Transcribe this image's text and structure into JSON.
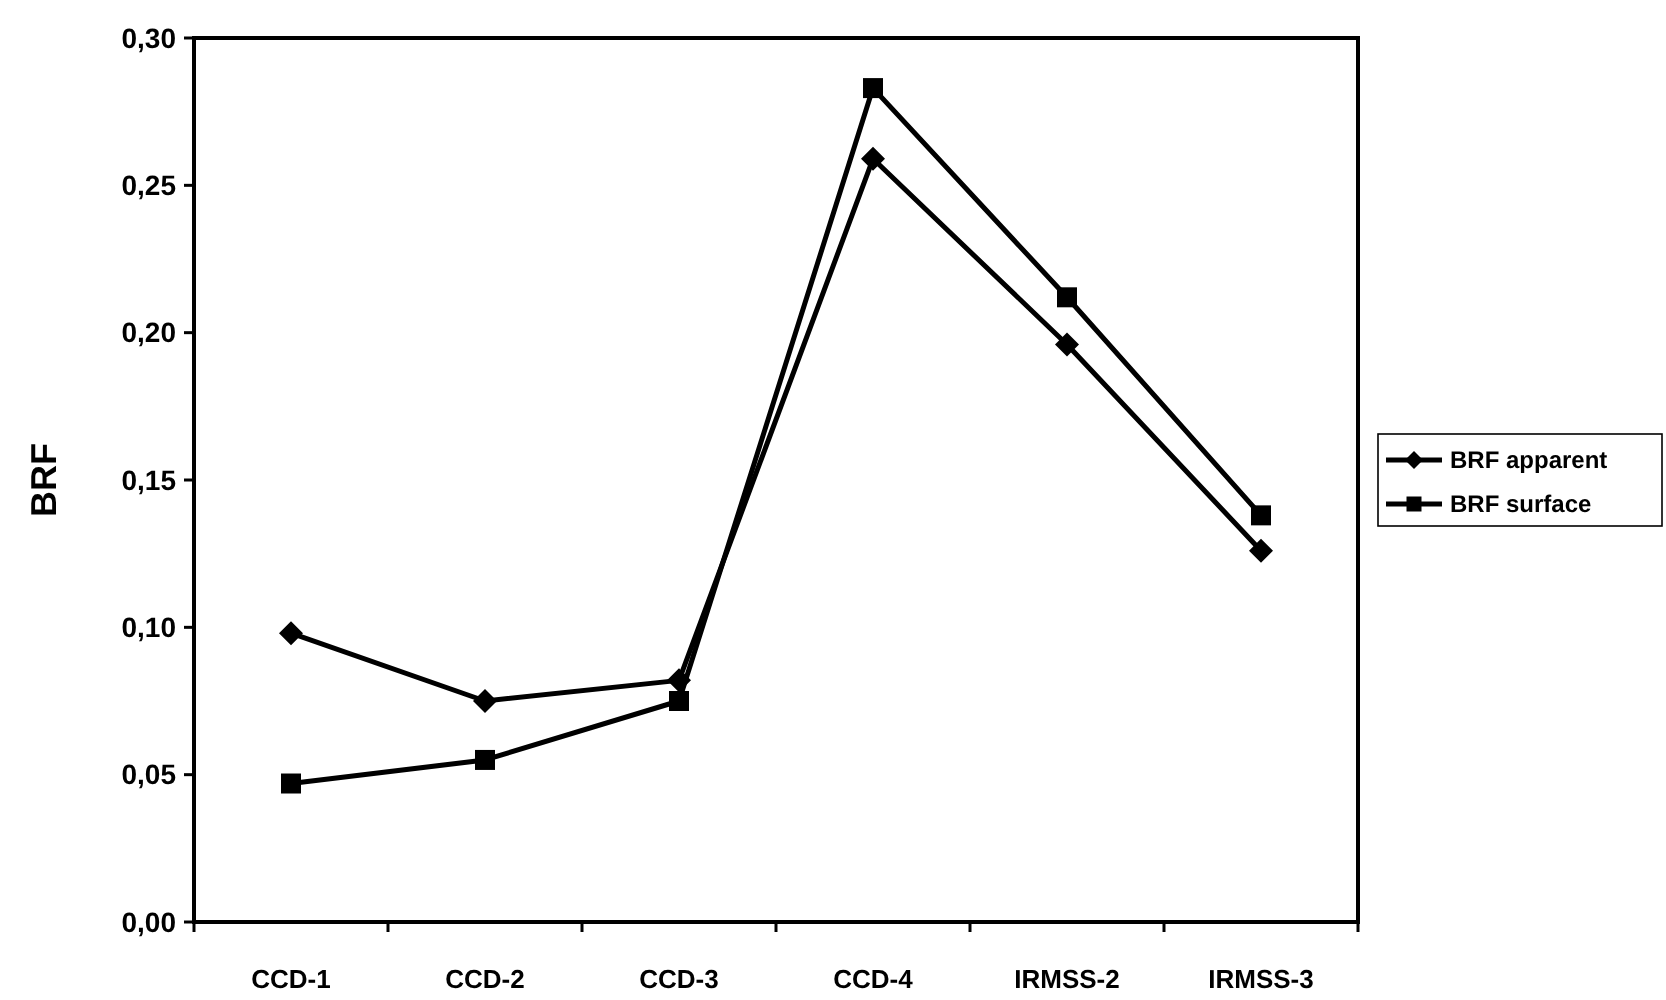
{
  "chart_data": {
    "type": "line",
    "ylabel": "BRF",
    "categories": [
      "CCD-1",
      "CCD-2",
      "CCD-3",
      "CCD-4",
      "IRMSS-2",
      "IRMSS-3"
    ],
    "series": [
      {
        "name": "BRF apparent",
        "color": "#000000",
        "marker": "diamond",
        "values": [
          0.098,
          0.075,
          0.082,
          0.259,
          0.196,
          0.126
        ]
      },
      {
        "name": "BRF surface",
        "color": "#000000",
        "marker": "square",
        "values": [
          0.047,
          0.055,
          0.075,
          0.283,
          0.212,
          0.138
        ]
      }
    ],
    "ylim": [
      0,
      0.3
    ],
    "yticks": [
      {
        "value": 0,
        "label": "0,00"
      },
      {
        "value": 0.05,
        "label": "0,05"
      },
      {
        "value": 0.1,
        "label": "0,10"
      },
      {
        "value": 0.15,
        "label": "0,15"
      },
      {
        "value": 0.2,
        "label": "0,20"
      },
      {
        "value": 0.25,
        "label": "0,25"
      },
      {
        "value": 0.3,
        "label": "0,30"
      }
    ],
    "grid": false,
    "legend": "right",
    "line_style": "solid"
  }
}
